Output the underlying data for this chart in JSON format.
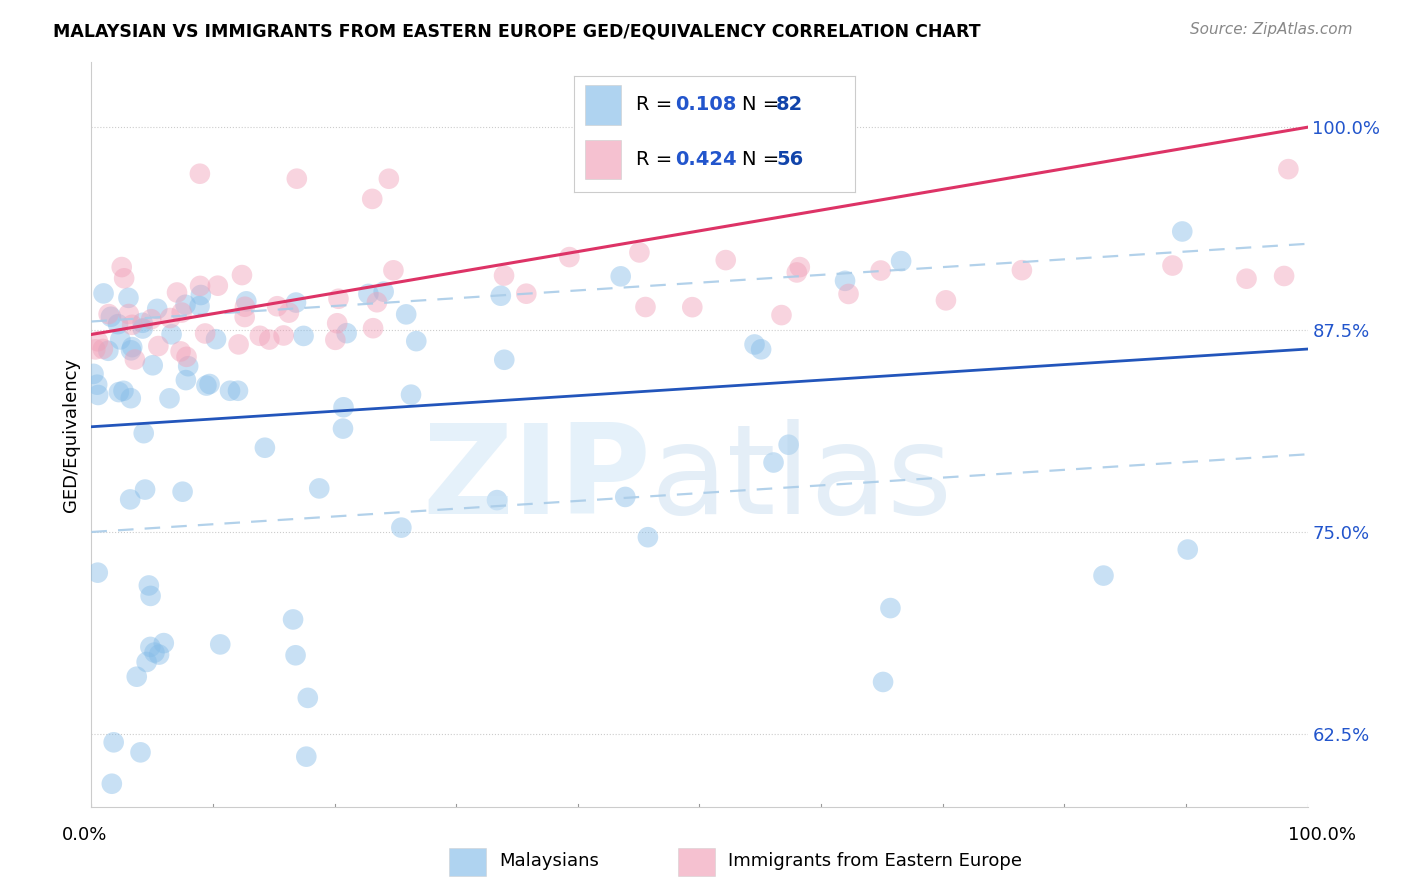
{
  "title": "MALAYSIAN VS IMMIGRANTS FROM EASTERN EUROPE GED/EQUIVALENCY CORRELATION CHART",
  "source": "Source: ZipAtlas.com",
  "ylabel": "GED/Equivalency",
  "yticks": [
    62.5,
    75.0,
    87.5,
    100.0
  ],
  "ytick_labels": [
    "62.5%",
    "75.0%",
    "87.5%",
    "100.0%"
  ],
  "xlim": [
    0.0,
    100.0
  ],
  "ylim": [
    58.0,
    104.0
  ],
  "blue_color": "#85bce8",
  "pink_color": "#f0a0b8",
  "blue_line_color": "#2255bb",
  "pink_line_color": "#dd3366",
  "r_color": "#2255cc",
  "n_color": "#1144aa",
  "blue_ci_color": "#aacce8",
  "grid_color": "#cccccc",
  "blue_intercept": 81.5,
  "blue_slope": 0.048,
  "pink_intercept": 87.2,
  "pink_slope": 0.128,
  "ci_upper": 6.5,
  "ci_lower": 6.5
}
